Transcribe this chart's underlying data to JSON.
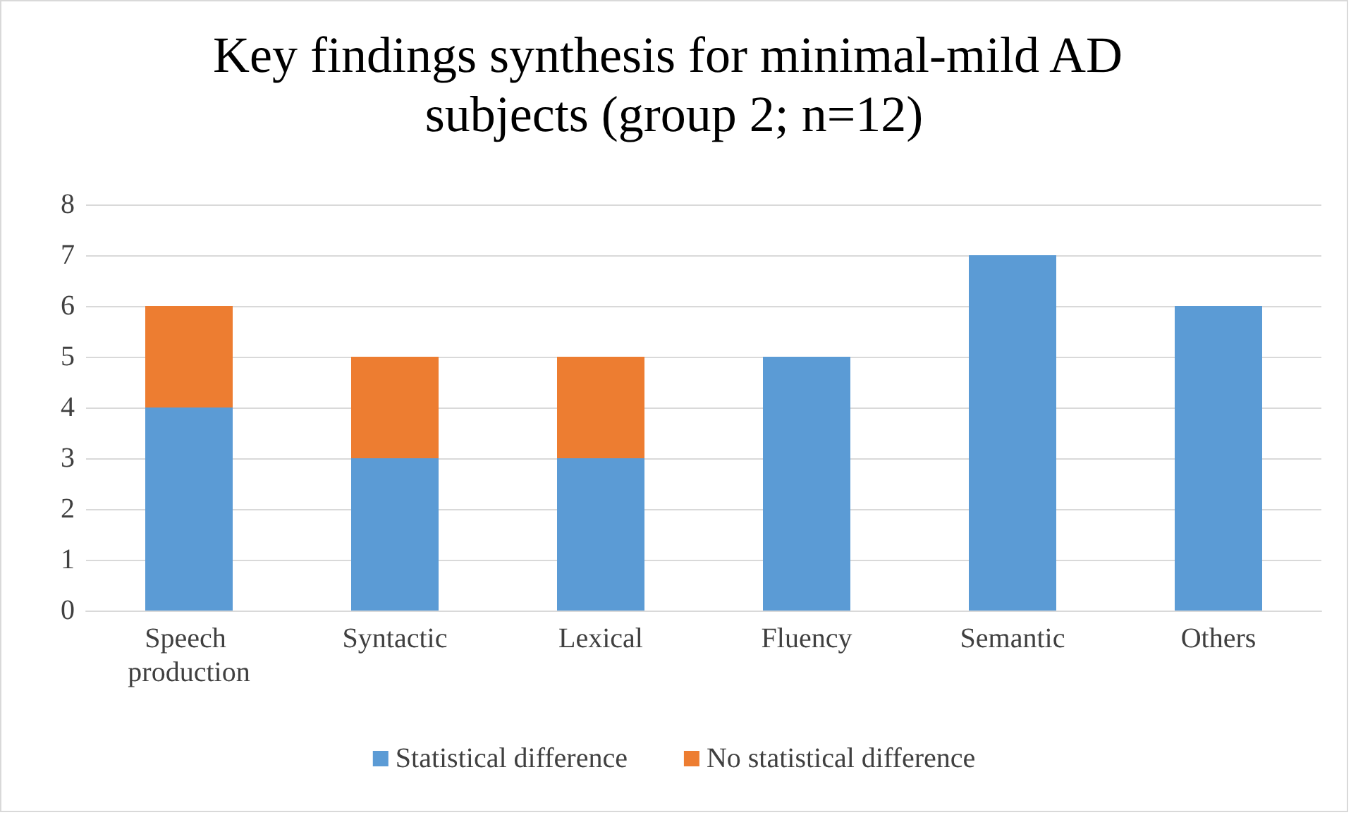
{
  "chart_data": {
    "type": "bar",
    "title": "Key findings synthesis for minimal-mild AD subjects (group 2; n=12)",
    "categories": [
      "Speech production",
      "Syntactic",
      "Lexical",
      "Fluency",
      "Semantic",
      "Others"
    ],
    "stacked": true,
    "series": [
      {
        "name": "Statistical difference",
        "color": "#5b9bd5",
        "values": [
          4,
          3,
          3,
          5,
          7,
          6
        ]
      },
      {
        "name": "No statistical difference",
        "color": "#ed7d31",
        "values": [
          2,
          2,
          2,
          null,
          null,
          null
        ]
      }
    ],
    "ylim": [
      0,
      8
    ],
    "yticks": [
      0,
      1,
      2,
      3,
      4,
      5,
      6,
      7,
      8
    ],
    "grid": "y",
    "legend": "bottom"
  }
}
